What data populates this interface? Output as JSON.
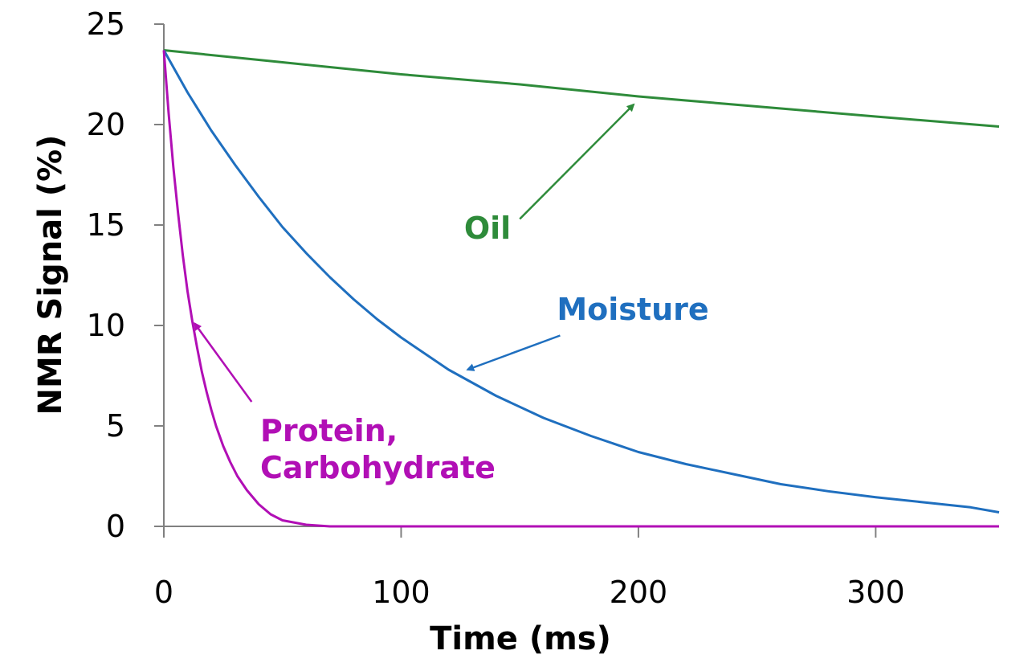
{
  "chart_data": {
    "type": "line",
    "xlabel": "Time (ms)",
    "ylabel": "NMR Signal (%)",
    "xlim": [
      0,
      352
    ],
    "ylim": [
      0,
      25
    ],
    "xticks": [
      0,
      100,
      200,
      300
    ],
    "yticks": [
      0,
      5,
      10,
      15,
      20,
      25
    ],
    "grid": false,
    "series": [
      {
        "name": "Oil",
        "color": "#2e8b3a",
        "x": [
          0,
          50,
          100,
          150,
          200,
          250,
          300,
          352
        ],
        "y": [
          23.7,
          23.1,
          22.5,
          22.0,
          21.4,
          20.9,
          20.4,
          19.9
        ]
      },
      {
        "name": "Moisture",
        "color": "#1f6fbf",
        "x": [
          0,
          10,
          20,
          30,
          40,
          50,
          60,
          70,
          80,
          90,
          100,
          120,
          140,
          160,
          180,
          200,
          220,
          240,
          260,
          280,
          300,
          320,
          340,
          352
        ],
        "y": [
          23.7,
          21.6,
          19.7,
          18.0,
          16.4,
          14.9,
          13.6,
          12.4,
          11.3,
          10.3,
          9.4,
          7.8,
          6.5,
          5.4,
          4.5,
          3.7,
          3.1,
          2.6,
          2.1,
          1.75,
          1.45,
          1.2,
          0.95,
          0.7
        ]
      },
      {
        "name": "Protein, Carbohydrate",
        "color": "#b10fb5",
        "x": [
          0,
          2,
          4,
          6,
          8,
          10,
          12,
          14,
          16,
          18,
          20,
          22,
          25,
          28,
          31,
          35,
          40,
          45,
          50,
          60,
          70,
          352
        ],
        "y": [
          23.7,
          20.6,
          17.9,
          15.6,
          13.5,
          11.7,
          10.2,
          8.9,
          7.7,
          6.7,
          5.8,
          5.0,
          4.0,
          3.2,
          2.5,
          1.8,
          1.1,
          0.6,
          0.3,
          0.08,
          0.0,
          0.0
        ]
      }
    ],
    "annotations": [
      {
        "text": "Oil",
        "color": "#2e8b3a",
        "arrow_from": [
          150,
          15.3
        ],
        "arrow_to": [
          198,
          21.0
        ]
      },
      {
        "text": "Moisture",
        "color": "#1f6fbf",
        "arrow_from": [
          167,
          9.5
        ],
        "arrow_to": [
          128,
          7.8
        ]
      },
      {
        "text": "Protein,\nCarbohydrate",
        "color": "#b10fb5",
        "arrow_from": [
          37,
          6.2
        ],
        "arrow_to": [
          13,
          10.1
        ]
      }
    ]
  }
}
